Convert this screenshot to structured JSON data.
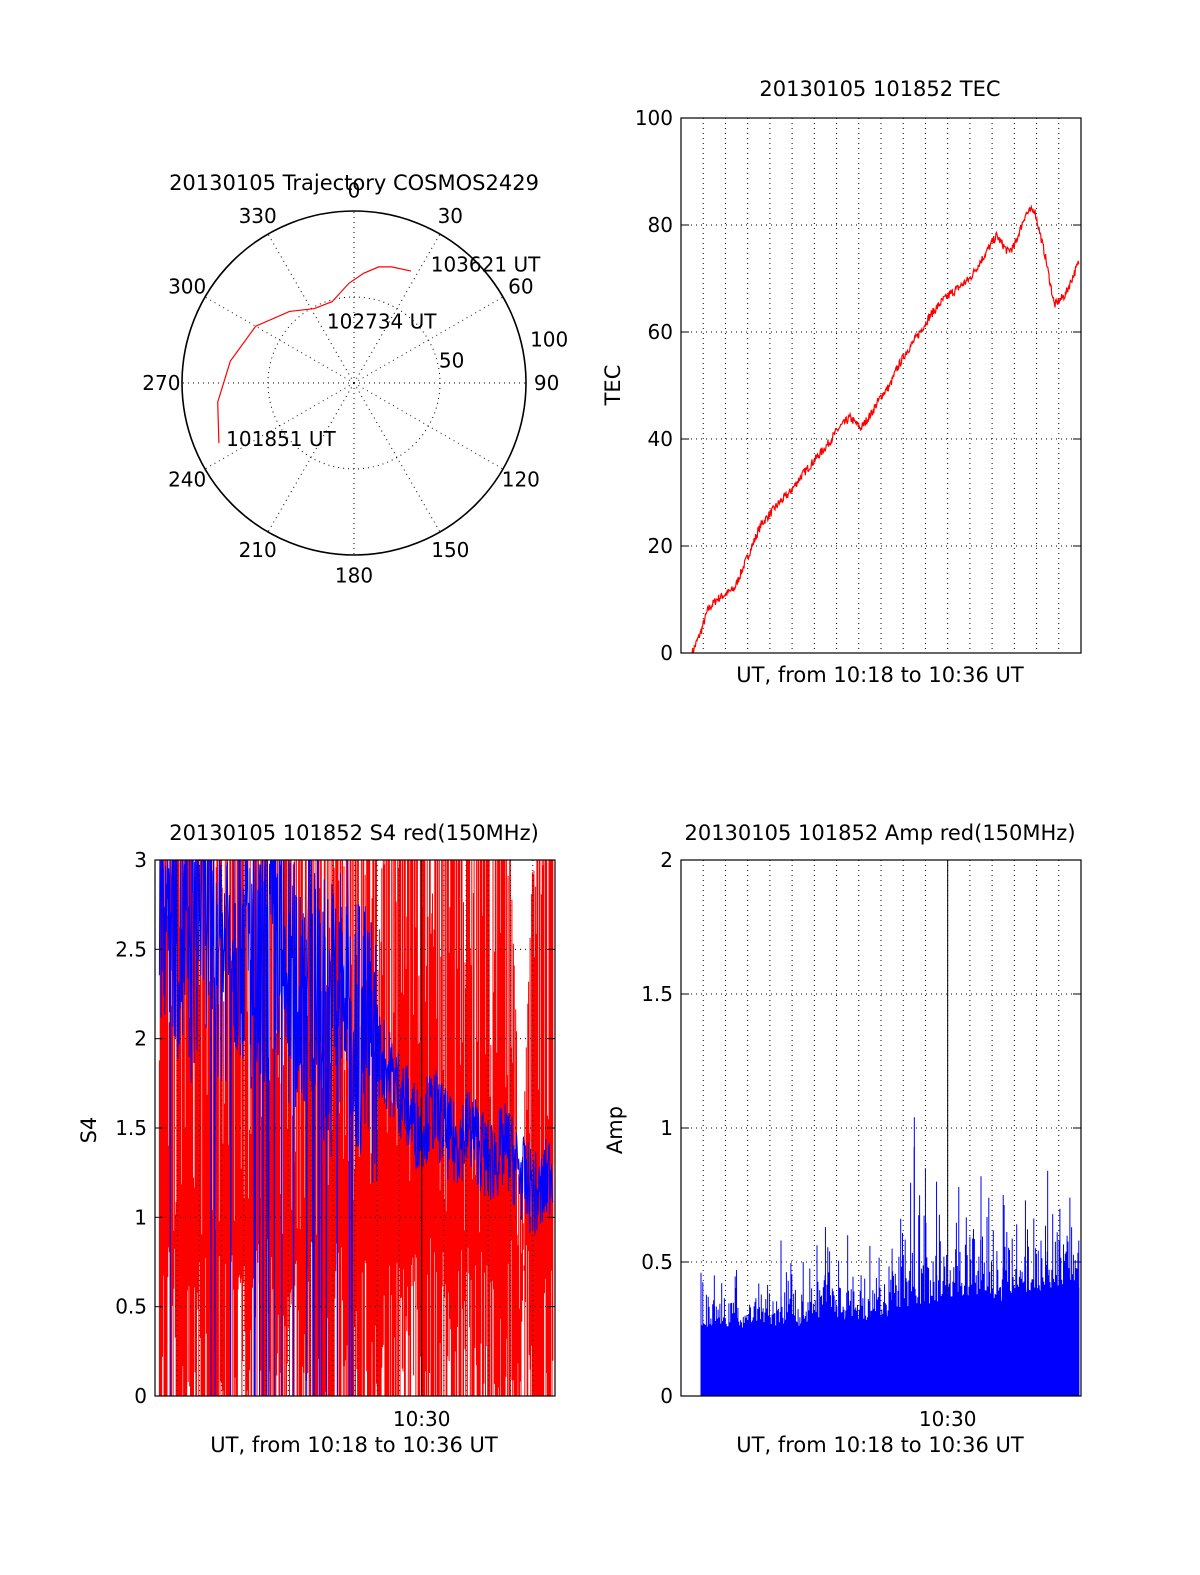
{
  "colors": {
    "red": "#ff0000",
    "blue": "#0000ff",
    "axis": "#000000",
    "background": "#ffffff"
  },
  "chart_data": [
    {
      "type": "polar",
      "title": "20130105 Trajectory COSMOS2429",
      "azimuth_ticks": [
        "0",
        "30",
        "60",
        "90",
        "120",
        "150",
        "180",
        "210",
        "240",
        "270",
        "300",
        "330"
      ],
      "azimuth_tick_values": [
        0,
        30,
        60,
        90,
        120,
        150,
        180,
        210,
        240,
        270,
        300,
        330
      ],
      "radial_ticks": [
        "50",
        "100"
      ],
      "radial_tick_values": [
        50,
        100
      ],
      "grid": true,
      "series": [
        {
          "color": "red",
          "points_az_r": [
            [
              246,
              86
            ],
            [
              262,
              80
            ],
            [
              280,
              73
            ],
            [
              300,
              66
            ],
            [
              318,
              56
            ],
            [
              332,
              49
            ],
            [
              345,
              49
            ],
            [
              357,
              58
            ],
            [
              5,
              64
            ],
            [
              12,
              69
            ],
            [
              18,
              71
            ],
            [
              27,
              73
            ]
          ]
        }
      ],
      "annotations": [
        {
          "text": "101851 UT",
          "az": 247,
          "r": 82
        },
        {
          "text": "102734 UT",
          "az": 335,
          "r": 40
        },
        {
          "text": "103621 UT",
          "az": 32,
          "r": 82
        }
      ]
    },
    {
      "type": "line",
      "title": "20130105 101852 TEC",
      "xlabel": "UT, from 10:18 to 10:36 UT",
      "ylabel": "TEC",
      "ylim": [
        0,
        100
      ],
      "y_ticks": [
        "0",
        "20",
        "40",
        "60",
        "80",
        "100"
      ],
      "y_tick_values": [
        0,
        20,
        40,
        60,
        80,
        100
      ],
      "xlim_min": [
        0,
        18
      ],
      "grid": true,
      "series": [
        {
          "color": "red",
          "x": [
            0.5,
            0.9,
            1.2,
            1.6,
            2.0,
            2.4,
            2.8,
            3.2,
            3.6,
            4.0,
            4.4,
            4.9,
            5.4,
            6.0,
            6.6,
            7.1,
            7.6,
            8.1,
            8.6,
            9.0,
            9.4,
            9.7,
            10.1,
            10.6,
            11.2,
            11.8,
            12.4,
            13.0,
            13.6,
            14.2,
            14.7,
            15.0,
            15.5,
            15.9,
            16.4,
            16.8,
            17.3,
            17.9
          ],
          "y": [
            0,
            4,
            8,
            10,
            11,
            12,
            16,
            20,
            24,
            26,
            28,
            30,
            33,
            36,
            39,
            42,
            44,
            42,
            45,
            48,
            50,
            53,
            56,
            59,
            63,
            66,
            68,
            70,
            74,
            78,
            75,
            76,
            82,
            83,
            74,
            65,
            67,
            73
          ]
        }
      ]
    },
    {
      "type": "line",
      "title": "20130105 101852 S4 red(150MHz)",
      "xlabel": "UT, from 10:18 to 10:36 UT",
      "ylabel": "S4",
      "ylim": [
        0,
        3
      ],
      "y_ticks": [
        "0",
        "0.5",
        "1",
        "1.5",
        "2",
        "2.5",
        "3"
      ],
      "y_tick_values": [
        0,
        0.5,
        1,
        1.5,
        2,
        2.5,
        3
      ],
      "x_ticks": [
        "10:30"
      ],
      "x_tick_values": [
        12
      ],
      "xlim_min": [
        0,
        18
      ],
      "grid": true,
      "series": [
        {
          "color": "red",
          "description_type": "dense-vertical-noise",
          "x": [
            0.2,
            1,
            2,
            3,
            4,
            5,
            6,
            7,
            8,
            9,
            10,
            11,
            12,
            13,
            14,
            15,
            16,
            16.5,
            17,
            17.5,
            17.9
          ],
          "y_max": [
            3,
            3,
            3,
            3,
            3,
            3,
            3,
            3,
            3,
            3,
            3,
            3,
            3,
            3,
            3,
            3,
            3,
            1.2,
            3,
            3,
            3
          ]
        },
        {
          "color": "blue",
          "x": [
            0.2,
            0.8,
            1.5,
            2.2,
            3,
            3.8,
            4.6,
            5.4,
            6.2,
            7,
            7.8,
            8.6,
            9.4,
            10.2,
            11,
            11.8,
            12.6,
            13.4,
            14.2,
            15,
            15.8,
            16.6,
            17.3,
            17.9
          ],
          "y": [
            2.9,
            2.8,
            2.4,
            2.9,
            2.5,
            2.7,
            2.3,
            2.6,
            2.2,
            2.5,
            2.1,
            2.3,
            2.0,
            1.9,
            1.7,
            1.5,
            1.6,
            1.4,
            1.5,
            1.3,
            1.4,
            1.2,
            1.1,
            1.3
          ]
        }
      ]
    },
    {
      "type": "bar",
      "title": "20130105 101852 Amp red(150MHz)",
      "xlabel": "UT, from 10:18 to 10:36 UT",
      "ylabel": "Amp",
      "ylim": [
        0,
        2
      ],
      "y_ticks": [
        "0",
        "0.5",
        "1",
        "1.5",
        "2"
      ],
      "y_tick_values": [
        0,
        0.5,
        1,
        1.5,
        2
      ],
      "x_ticks": [
        "10:30"
      ],
      "x_tick_values": [
        12
      ],
      "xlim_min": [
        0,
        18
      ],
      "grid": true,
      "series": [
        {
          "color": "blue",
          "x": [
            0.9,
            1.5,
            2.5,
            3.5,
            4.5,
            5.5,
            6.5,
            7.5,
            8.5,
            9.5,
            10.5,
            11,
            11.5,
            12.5,
            13.5,
            14.5,
            15.5,
            16.5,
            17.5,
            17.9
          ],
          "y_base": [
            0.25,
            0.27,
            0.26,
            0.28,
            0.27,
            0.28,
            0.3,
            0.3,
            0.29,
            0.31,
            0.33,
            0.34,
            0.35,
            0.36,
            0.38,
            0.37,
            0.39,
            0.4,
            0.41,
            0.42
          ],
          "y_peak": [
            0.46,
            0.45,
            0.47,
            0.42,
            0.58,
            0.5,
            0.63,
            0.6,
            0.56,
            0.55,
            1.04,
            0.85,
            0.8,
            0.78,
            0.82,
            0.75,
            0.73,
            0.84,
            0.74,
            0.58
          ]
        }
      ]
    }
  ]
}
